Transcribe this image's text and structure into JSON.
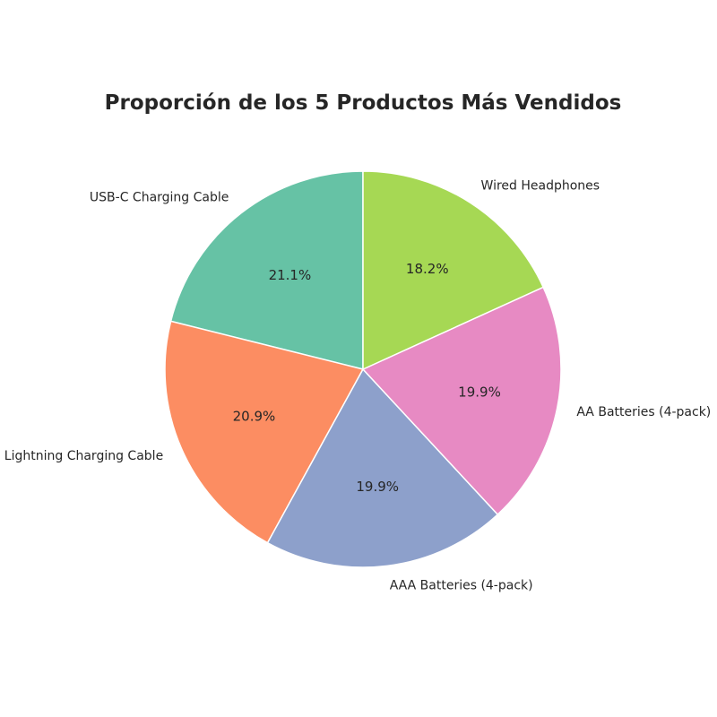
{
  "chart_data": {
    "type": "pie",
    "title": "Proporción de los 5 Productos Más Vendidos",
    "slices": [
      {
        "label": "USB-C Charging Cable",
        "value": 21.1,
        "pct_label": "21.1%",
        "color": "#66c2a5"
      },
      {
        "label": "Lightning Charging Cable",
        "value": 20.9,
        "pct_label": "20.9%",
        "color": "#fc8d62"
      },
      {
        "label": "AAA Batteries (4-pack)",
        "value": 19.9,
        "pct_label": "19.9%",
        "color": "#8da0cb"
      },
      {
        "label": "AA Batteries (4-pack)",
        "value": 19.9,
        "pct_label": "19.9%",
        "color": "#e78ac3"
      },
      {
        "label": "Wired Headphones",
        "value": 18.2,
        "pct_label": "18.2%",
        "color": "#a6d854"
      }
    ],
    "start_angle": 90,
    "direction": "counterclockwise",
    "legend": "none"
  }
}
